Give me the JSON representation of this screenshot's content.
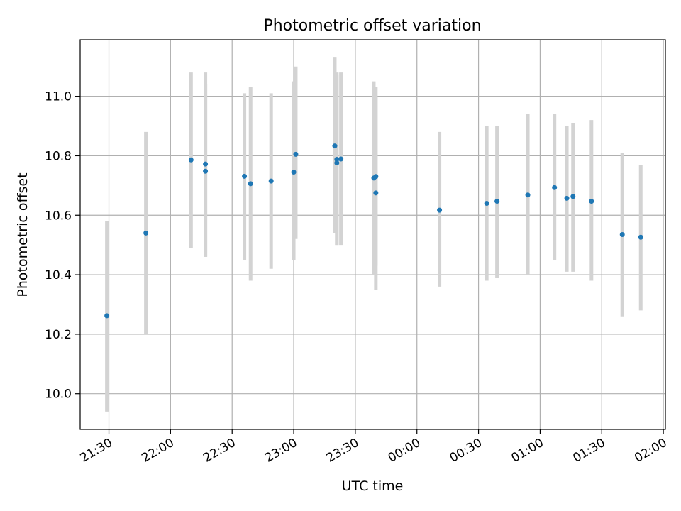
{
  "chart_data": {
    "type": "scatter",
    "title": "Photometric offset variation",
    "xlabel": "UTC time",
    "ylabel": "Photometric offset",
    "xlim": [
      "21:16",
      "02:01"
    ],
    "ylim": [
      9.88,
      11.19
    ],
    "x_ticks": [
      "21:30",
      "22:00",
      "22:30",
      "23:00",
      "23:30",
      "00:00",
      "00:30",
      "01:00",
      "01:30",
      "02:00"
    ],
    "y_ticks": [
      "10.0",
      "10.2",
      "10.4",
      "10.6",
      "10.8",
      "11.0"
    ],
    "grid": true,
    "point_color": "#1f77b4",
    "errorbar_color": "#d3d3d3",
    "points": [
      {
        "x": "21:29",
        "y": 10.262,
        "ylo": 9.94,
        "yhi": 10.58
      },
      {
        "x": "21:48",
        "y": 10.54,
        "ylo": 10.2,
        "yhi": 10.88
      },
      {
        "x": "22:10",
        "y": 10.786,
        "ylo": 10.49,
        "yhi": 11.08
      },
      {
        "x": "22:17",
        "y": 10.772,
        "ylo": 10.46,
        "yhi": 11.08
      },
      {
        "x": "22:17",
        "y": 10.748,
        "ylo": 10.46,
        "yhi": 11.04
      },
      {
        "x": "22:36",
        "y": 10.731,
        "ylo": 10.45,
        "yhi": 11.01
      },
      {
        "x": "22:39",
        "y": 10.706,
        "ylo": 10.38,
        "yhi": 11.03
      },
      {
        "x": "22:49",
        "y": 10.715,
        "ylo": 10.42,
        "yhi": 11.01
      },
      {
        "x": "23:00",
        "y": 10.745,
        "ylo": 10.45,
        "yhi": 11.05
      },
      {
        "x": "23:01",
        "y": 10.805,
        "ylo": 10.52,
        "yhi": 11.1
      },
      {
        "x": "23:20",
        "y": 10.833,
        "ylo": 10.54,
        "yhi": 11.13
      },
      {
        "x": "23:21",
        "y": 10.776,
        "ylo": 10.5,
        "yhi": 11.07
      },
      {
        "x": "23:21",
        "y": 10.788,
        "ylo": 10.5,
        "yhi": 11.08
      },
      {
        "x": "23:23",
        "y": 10.789,
        "ylo": 10.5,
        "yhi": 11.08
      },
      {
        "x": "23:39",
        "y": 10.725,
        "ylo": 10.4,
        "yhi": 11.05
      },
      {
        "x": "23:40",
        "y": 10.73,
        "ylo": 10.43,
        "yhi": 11.03
      },
      {
        "x": "23:40",
        "y": 10.675,
        "ylo": 10.35,
        "yhi": 11.0
      },
      {
        "x": "00:11",
        "y": 10.617,
        "ylo": 10.36,
        "yhi": 10.88
      },
      {
        "x": "00:34",
        "y": 10.64,
        "ylo": 10.38,
        "yhi": 10.9
      },
      {
        "x": "00:39",
        "y": 10.647,
        "ylo": 10.39,
        "yhi": 10.9
      },
      {
        "x": "00:54",
        "y": 10.668,
        "ylo": 10.4,
        "yhi": 10.94
      },
      {
        "x": "01:07",
        "y": 10.693,
        "ylo": 10.45,
        "yhi": 10.94
      },
      {
        "x": "01:13",
        "y": 10.657,
        "ylo": 10.41,
        "yhi": 10.9
      },
      {
        "x": "01:16",
        "y": 10.663,
        "ylo": 10.41,
        "yhi": 10.91
      },
      {
        "x": "01:25",
        "y": 10.647,
        "ylo": 10.38,
        "yhi": 10.92
      },
      {
        "x": "01:40",
        "y": 10.535,
        "ylo": 10.26,
        "yhi": 10.81
      },
      {
        "x": "01:49",
        "y": 10.526,
        "ylo": 10.28,
        "yhi": 10.77
      }
    ]
  }
}
